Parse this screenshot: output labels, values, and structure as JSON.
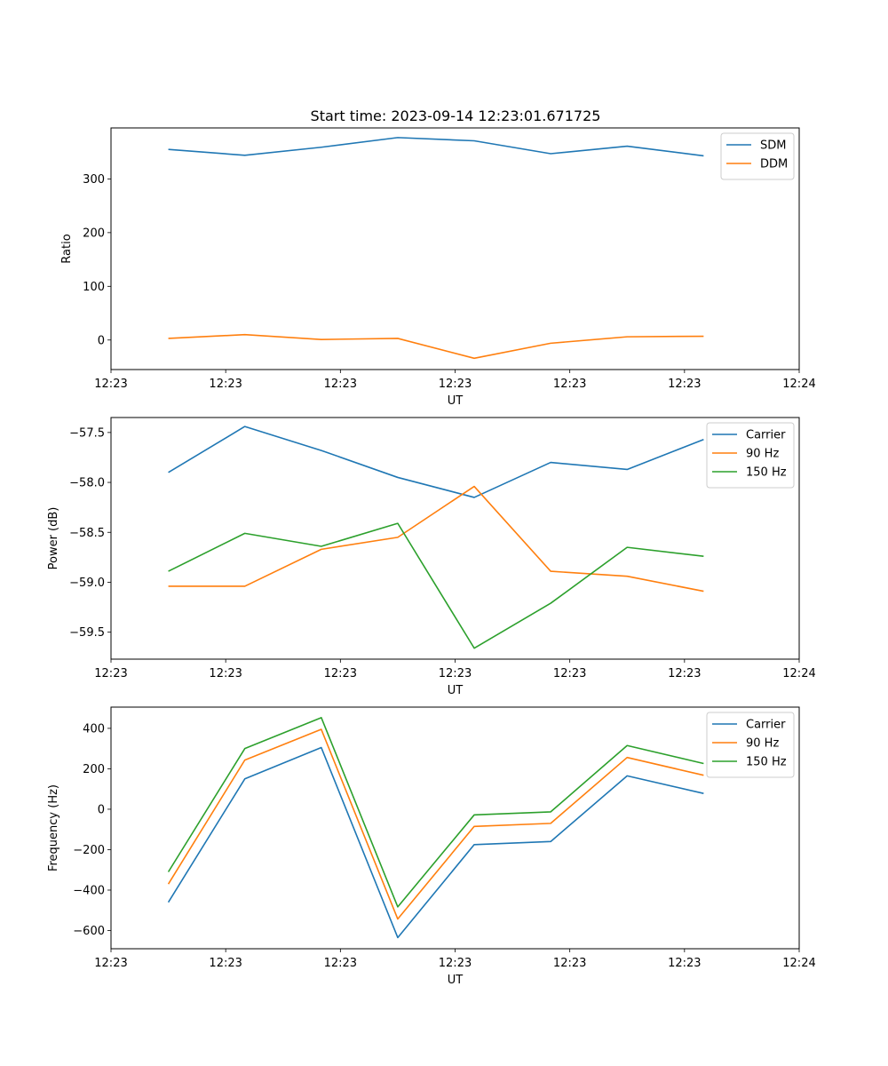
{
  "figure": {
    "title": "Start time: 2023-09-14 12:23:01.671725"
  },
  "chart_data": [
    {
      "type": "line",
      "title": "Start time: 2023-09-14 12:23:01.671725",
      "xlabel": "UT",
      "ylabel": "Ratio",
      "x": [
        1,
        2,
        3,
        4,
        5,
        6,
        7,
        8
      ],
      "xlim": [
        0.25,
        9.25
      ],
      "x_ticks": [
        0.25,
        1.75,
        3.25,
        4.75,
        6.25,
        7.75,
        9.25
      ],
      "x_tick_labels": [
        "12:23",
        "12:23",
        "12:23",
        "12:23",
        "12:23",
        "12:23",
        "12:24"
      ],
      "ylim": [
        -55,
        395
      ],
      "y_ticks": [
        0,
        100,
        200,
        300
      ],
      "y_tick_labels": [
        "0",
        "100",
        "200",
        "300"
      ],
      "legend": "top-right",
      "series": [
        {
          "name": "SDM",
          "color": "#1f77b4",
          "values": [
            355,
            344,
            359,
            377,
            371,
            347,
            361,
            343
          ]
        },
        {
          "name": "DDM",
          "color": "#ff7f0e",
          "values": [
            3,
            10,
            1,
            3,
            -34,
            -6,
            6,
            7
          ]
        }
      ]
    },
    {
      "type": "line",
      "title": "",
      "xlabel": "UT",
      "ylabel": "Power (dB)",
      "x": [
        1,
        2,
        3,
        4,
        5,
        6,
        7,
        8
      ],
      "xlim": [
        0.25,
        9.25
      ],
      "x_ticks": [
        0.25,
        1.75,
        3.25,
        4.75,
        6.25,
        7.75,
        9.25
      ],
      "x_tick_labels": [
        "12:23",
        "12:23",
        "12:23",
        "12:23",
        "12:23",
        "12:23",
        "12:24"
      ],
      "ylim": [
        -59.77,
        -57.35
      ],
      "y_ticks": [
        -59.5,
        -59.0,
        -58.5,
        -58.0,
        -57.5
      ],
      "y_tick_labels": [
        "−59.5",
        "−59.0",
        "−58.5",
        "−58.0",
        "−57.5"
      ],
      "legend": "top-right",
      "series": [
        {
          "name": "Carrier",
          "color": "#1f77b4",
          "values": [
            -57.9,
            -57.44,
            -57.68,
            -57.95,
            -58.15,
            -57.8,
            -57.87,
            -57.57
          ]
        },
        {
          "name": "90 Hz",
          "color": "#ff7f0e",
          "values": [
            -59.04,
            -59.04,
            -58.67,
            -58.55,
            -58.04,
            -58.89,
            -58.94,
            -59.09
          ]
        },
        {
          "name": "150 Hz",
          "color": "#2ca02c",
          "values": [
            -58.89,
            -58.51,
            -58.64,
            -58.41,
            -59.66,
            -59.21,
            -58.65,
            -58.74
          ]
        }
      ]
    },
    {
      "type": "line",
      "title": "",
      "xlabel": "UT",
      "ylabel": "Frequency (Hz)",
      "x": [
        1,
        2,
        3,
        4,
        5,
        6,
        7,
        8
      ],
      "xlim": [
        0.25,
        9.25
      ],
      "x_ticks": [
        0.25,
        1.75,
        3.25,
        4.75,
        6.25,
        7.75,
        9.25
      ],
      "x_tick_labels": [
        "12:23",
        "12:23",
        "12:23",
        "12:23",
        "12:23",
        "12:23",
        "12:24"
      ],
      "ylim": [
        -690,
        505
      ],
      "y_ticks": [
        -600,
        -400,
        -200,
        0,
        200,
        400
      ],
      "y_tick_labels": [
        "−600",
        "−400",
        "−200",
        "0",
        "200",
        "400"
      ],
      "legend": "top-right",
      "series": [
        {
          "name": "Carrier",
          "color": "#1f77b4",
          "values": [
            -460,
            150,
            305,
            -635,
            -175,
            -160,
            165,
            78
          ]
        },
        {
          "name": "90 Hz",
          "color": "#ff7f0e",
          "values": [
            -370,
            243,
            395,
            -543,
            -85,
            -70,
            256,
            168
          ]
        },
        {
          "name": "150 Hz",
          "color": "#2ca02c",
          "values": [
            -310,
            300,
            453,
            -483,
            -28,
            -13,
            315,
            226
          ]
        }
      ]
    }
  ]
}
